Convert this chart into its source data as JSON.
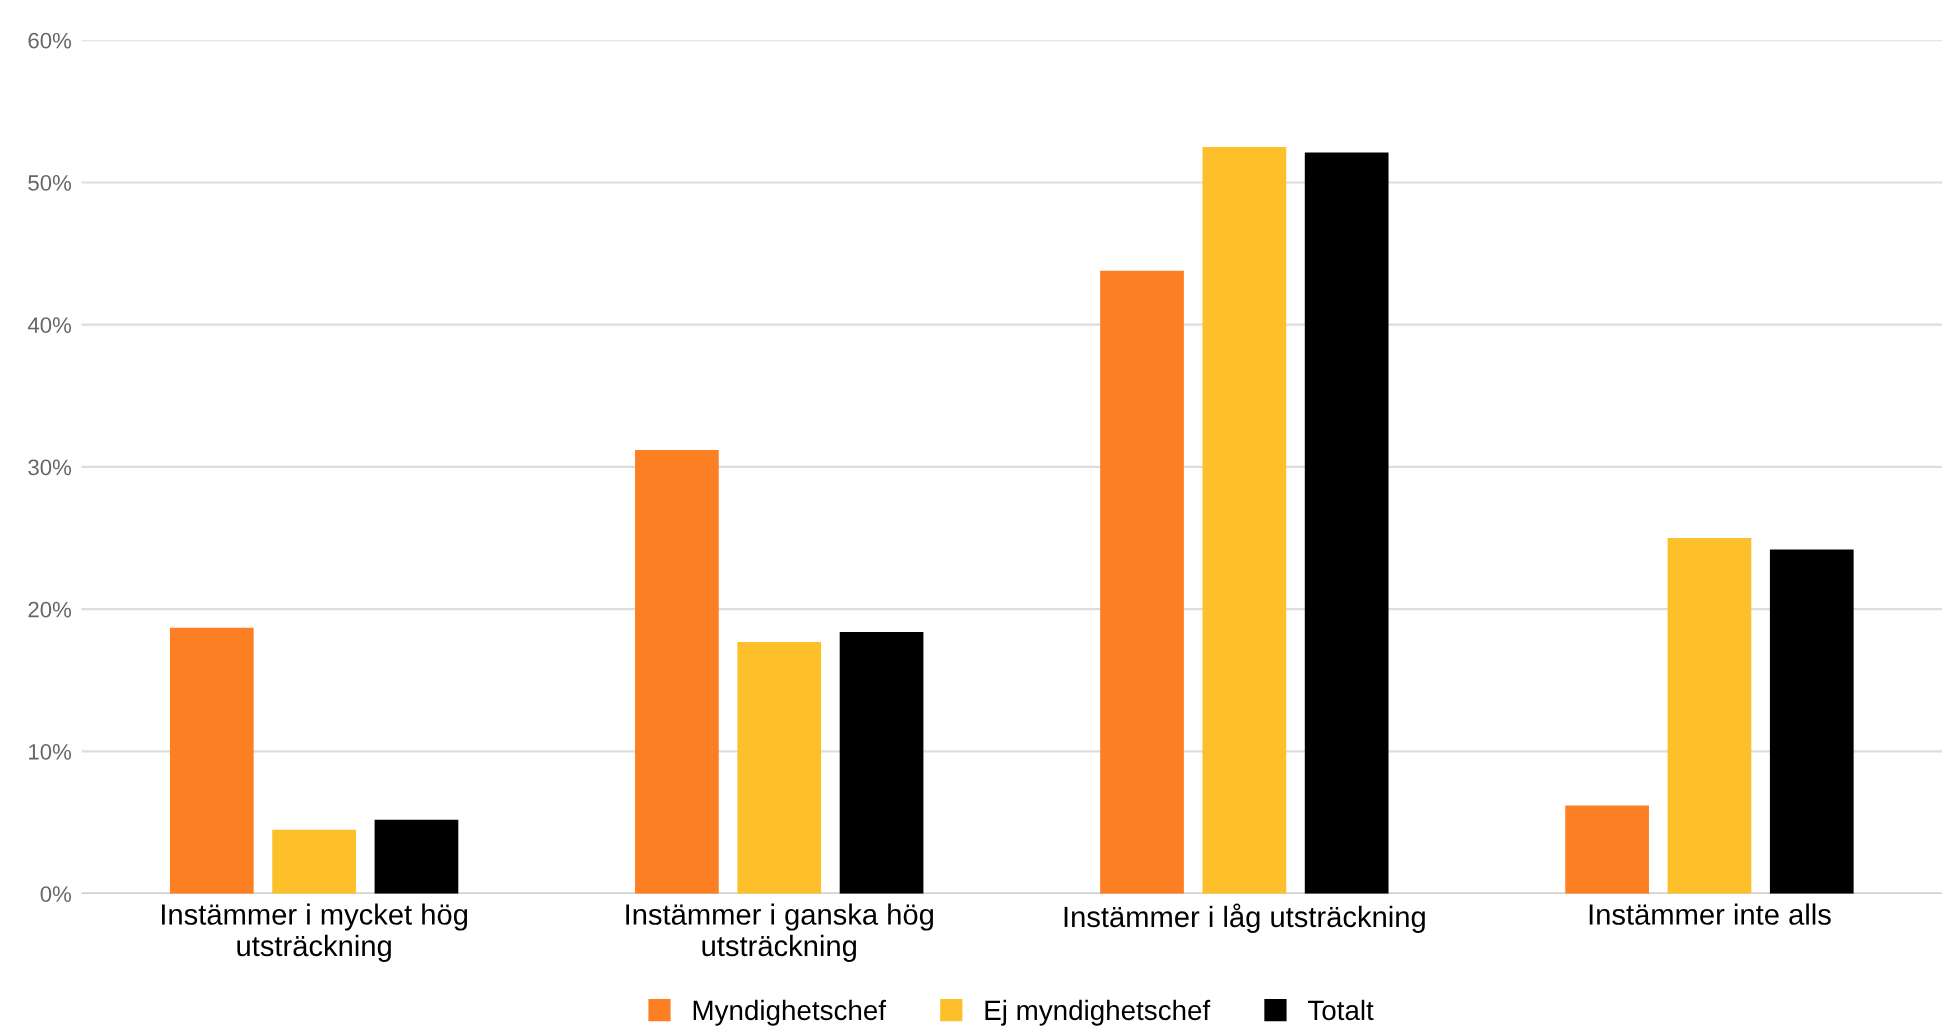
{
  "chart_data": {
    "type": "bar",
    "categories": [
      "Instämmer i mycket hög\nutsträckning",
      "Instämmer i ganska hög\nutsträckning",
      "Instämmer i låg utsträckning",
      "Instämmer inte alls"
    ],
    "series": [
      {
        "name": "Myndighetschef",
        "color": "#fd7f23",
        "values": [
          18.7,
          31.2,
          43.8,
          6.2
        ]
      },
      {
        "name": "Ej myndighetschef",
        "color": "#fec02a",
        "values": [
          4.5,
          17.7,
          52.5,
          25.0
        ]
      },
      {
        "name": "Totalt",
        "color": "#000000",
        "values": [
          5.2,
          18.4,
          52.1,
          24.2
        ]
      }
    ],
    "ylim": [
      0,
      60
    ],
    "yticks": [
      {
        "value": 0,
        "label": "0%"
      },
      {
        "value": 10,
        "label": "10%"
      },
      {
        "value": 20,
        "label": "20%"
      },
      {
        "value": 30,
        "label": "30%"
      },
      {
        "value": 40,
        "label": "40%"
      },
      {
        "value": 50,
        "label": "50%"
      },
      {
        "value": 60,
        "label": "60%"
      }
    ],
    "grid": "y",
    "legend": "bottom"
  }
}
